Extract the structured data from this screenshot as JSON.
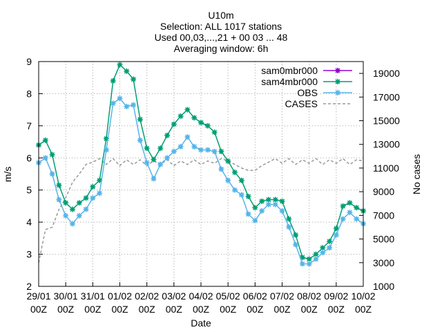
{
  "title_lines": [
    "U10m",
    "Selection: ALL   1017 stations",
    "Used 00,03,...,21 + 00 03 ... 48",
    "Averaging window:  6h"
  ],
  "chart_data": {
    "type": "line",
    "xlabel": "Date",
    "ylabel": "m/s",
    "y2label": "No cases",
    "ylim": [
      2,
      9
    ],
    "y2lim": [
      1000,
      20000
    ],
    "grid": true,
    "legend_position": "top-right",
    "x_range": [
      "2014-01-29T00:00",
      "2014-02-10T00:00"
    ],
    "yticks": [
      2,
      3,
      4,
      5,
      6,
      7,
      8,
      9
    ],
    "y2ticks": [
      1000,
      3000,
      5000,
      7000,
      9000,
      11000,
      13000,
      15000,
      17000,
      19000
    ],
    "x_tick_labels": [
      [
        "29/01",
        "00Z"
      ],
      [
        "30/01",
        "00Z"
      ],
      [
        "31/01",
        "00Z"
      ],
      [
        "01/02",
        "00Z"
      ],
      [
        "02/02",
        "00Z"
      ],
      [
        "03/02",
        "00Z"
      ],
      [
        "04/02",
        "00Z"
      ],
      [
        "05/02",
        "00Z"
      ],
      [
        "06/02",
        "00Z"
      ],
      [
        "07/02",
        "00Z"
      ],
      [
        "08/02",
        "00Z"
      ],
      [
        "09/02",
        "00Z"
      ],
      [
        "10/02",
        "00Z"
      ]
    ],
    "x_hours": [
      0,
      6,
      12,
      18,
      24,
      30,
      36,
      42,
      48,
      54,
      60,
      66,
      72,
      78,
      84,
      90,
      96,
      102,
      108,
      114,
      120,
      126,
      132,
      138,
      144,
      150,
      156,
      162,
      168,
      174,
      180,
      186,
      192,
      198,
      204,
      210,
      216,
      222,
      228,
      234,
      240,
      246,
      252,
      258,
      264,
      270,
      276,
      282,
      288
    ],
    "series": [
      {
        "name": "sam0mbr000",
        "color": "#9400d3",
        "axis": "y1",
        "style": "line-points",
        "values": []
      },
      {
        "name": "sam4mbr000",
        "color": "#009e73",
        "axis": "y1",
        "style": "line-points",
        "values": [
          6.4,
          6.55,
          6.1,
          5.15,
          4.6,
          4.4,
          4.6,
          4.75,
          5.1,
          5.3,
          6.6,
          8.4,
          8.9,
          8.7,
          8.45,
          7.2,
          6.3,
          5.95,
          6.3,
          6.7,
          7.05,
          7.3,
          7.5,
          7.25,
          7.1,
          7.0,
          6.8,
          6.2,
          5.9,
          5.55,
          5.3,
          4.8,
          4.45,
          4.65,
          4.7,
          4.7,
          4.65,
          4.1,
          3.6,
          2.9,
          2.85,
          3.0,
          3.2,
          3.4,
          3.8,
          4.5,
          4.6,
          4.45,
          4.35
        ]
      },
      {
        "name": "OBS",
        "color": "#56b4e9",
        "axis": "y1",
        "style": "line-points",
        "values": [
          5.85,
          6.0,
          5.5,
          4.7,
          4.2,
          3.95,
          4.2,
          4.4,
          4.75,
          4.9,
          6.25,
          7.7,
          7.85,
          7.6,
          7.65,
          6.55,
          5.85,
          5.35,
          5.8,
          6.0,
          6.2,
          6.35,
          6.65,
          6.35,
          6.25,
          6.25,
          6.2,
          5.65,
          5.3,
          5.0,
          4.85,
          4.25,
          4.05,
          4.35,
          4.55,
          4.55,
          4.35,
          3.85,
          3.3,
          2.7,
          2.7,
          2.85,
          3.05,
          3.2,
          3.6,
          4.1,
          4.3,
          4.1,
          3.95
        ]
      },
      {
        "name": "CASES",
        "color": "#999999",
        "axis": "y2",
        "style": "dashed",
        "values": [
          3000,
          5800,
          6000,
          7500,
          8500,
          9800,
          10500,
          11300,
          11500,
          11800,
          11300,
          11800,
          11200,
          11700,
          11300,
          11700,
          11200,
          11600,
          11300,
          11700,
          11200,
          11600,
          11300,
          11700,
          11300,
          11600,
          11400,
          11800,
          11600,
          11300,
          11000,
          10800,
          10800,
          11200,
          11500,
          11800,
          11400,
          11800,
          11300,
          11700,
          11400,
          11800,
          11300,
          11700,
          11400,
          11800,
          11300,
          11700,
          11600
        ]
      }
    ]
  }
}
